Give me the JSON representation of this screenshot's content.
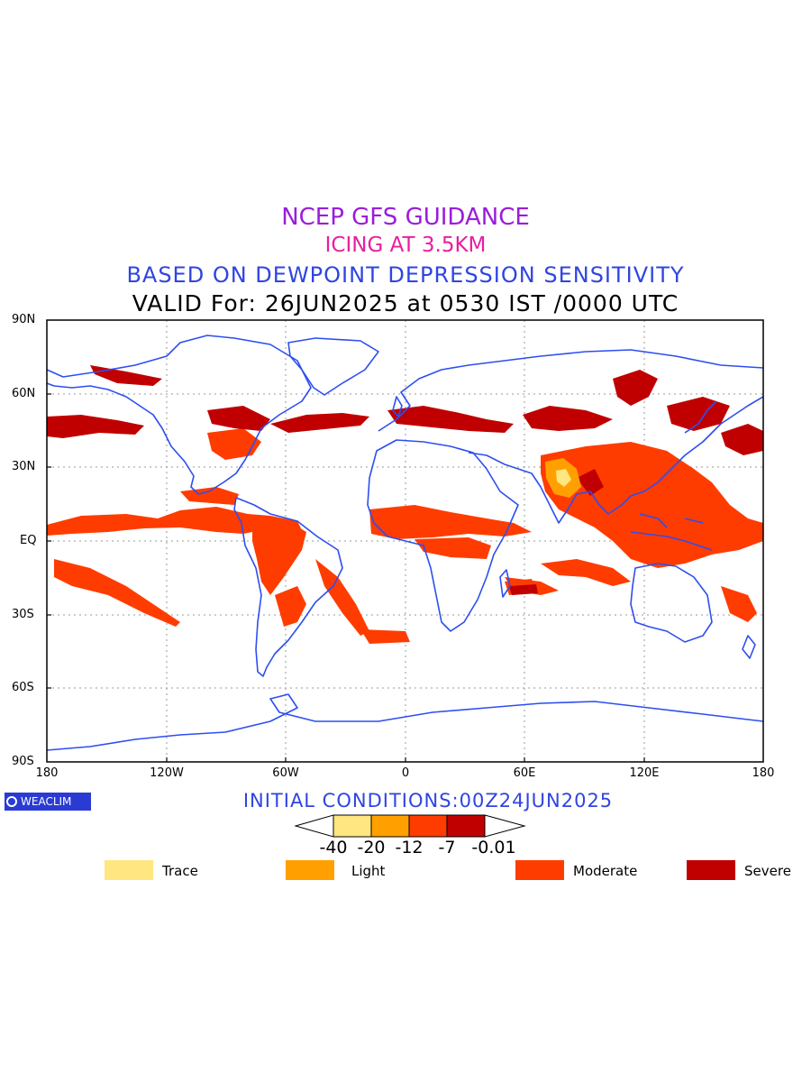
{
  "titles": {
    "line1": "NCEP GFS GUIDANCE",
    "line2": "ICING AT 3.5KM",
    "line3": "BASED ON DEWPOINT DEPRESSION SENSITIVITY",
    "line4": "VALID For: 26JUN2025 at 0530 IST /0000 UTC"
  },
  "colors": {
    "title1": "#9a1ddb",
    "title2": "#e81ea0",
    "title3": "#2f45e0",
    "title4": "#000000",
    "coast": "#2d4ef0",
    "trace": "#ffe680",
    "light": "#ffa000",
    "moderate": "#ff3c00",
    "severe": "#c00000"
  },
  "axes": {
    "lat_labels": [
      "90N",
      "60N",
      "30N",
      "EQ",
      "30S",
      "60S",
      "90S"
    ],
    "lon_labels": [
      "180",
      "120W",
      "60W",
      "0",
      "60E",
      "120E",
      "180"
    ]
  },
  "logo": {
    "text": "WEACLIM"
  },
  "initial_conditions": "INITIAL CONDITIONS:00Z24JUN2025",
  "colorbar": {
    "labels": [
      "-40",
      "-20",
      "-12",
      "-7",
      "-0.01"
    ]
  },
  "legend": [
    {
      "label": "Trace",
      "color": "#ffe680"
    },
    {
      "label": "Light",
      "color": "#ffa000"
    },
    {
      "label": "Moderate",
      "color": "#ff3c00"
    },
    {
      "label": "Severe",
      "color": "#c00000"
    }
  ]
}
